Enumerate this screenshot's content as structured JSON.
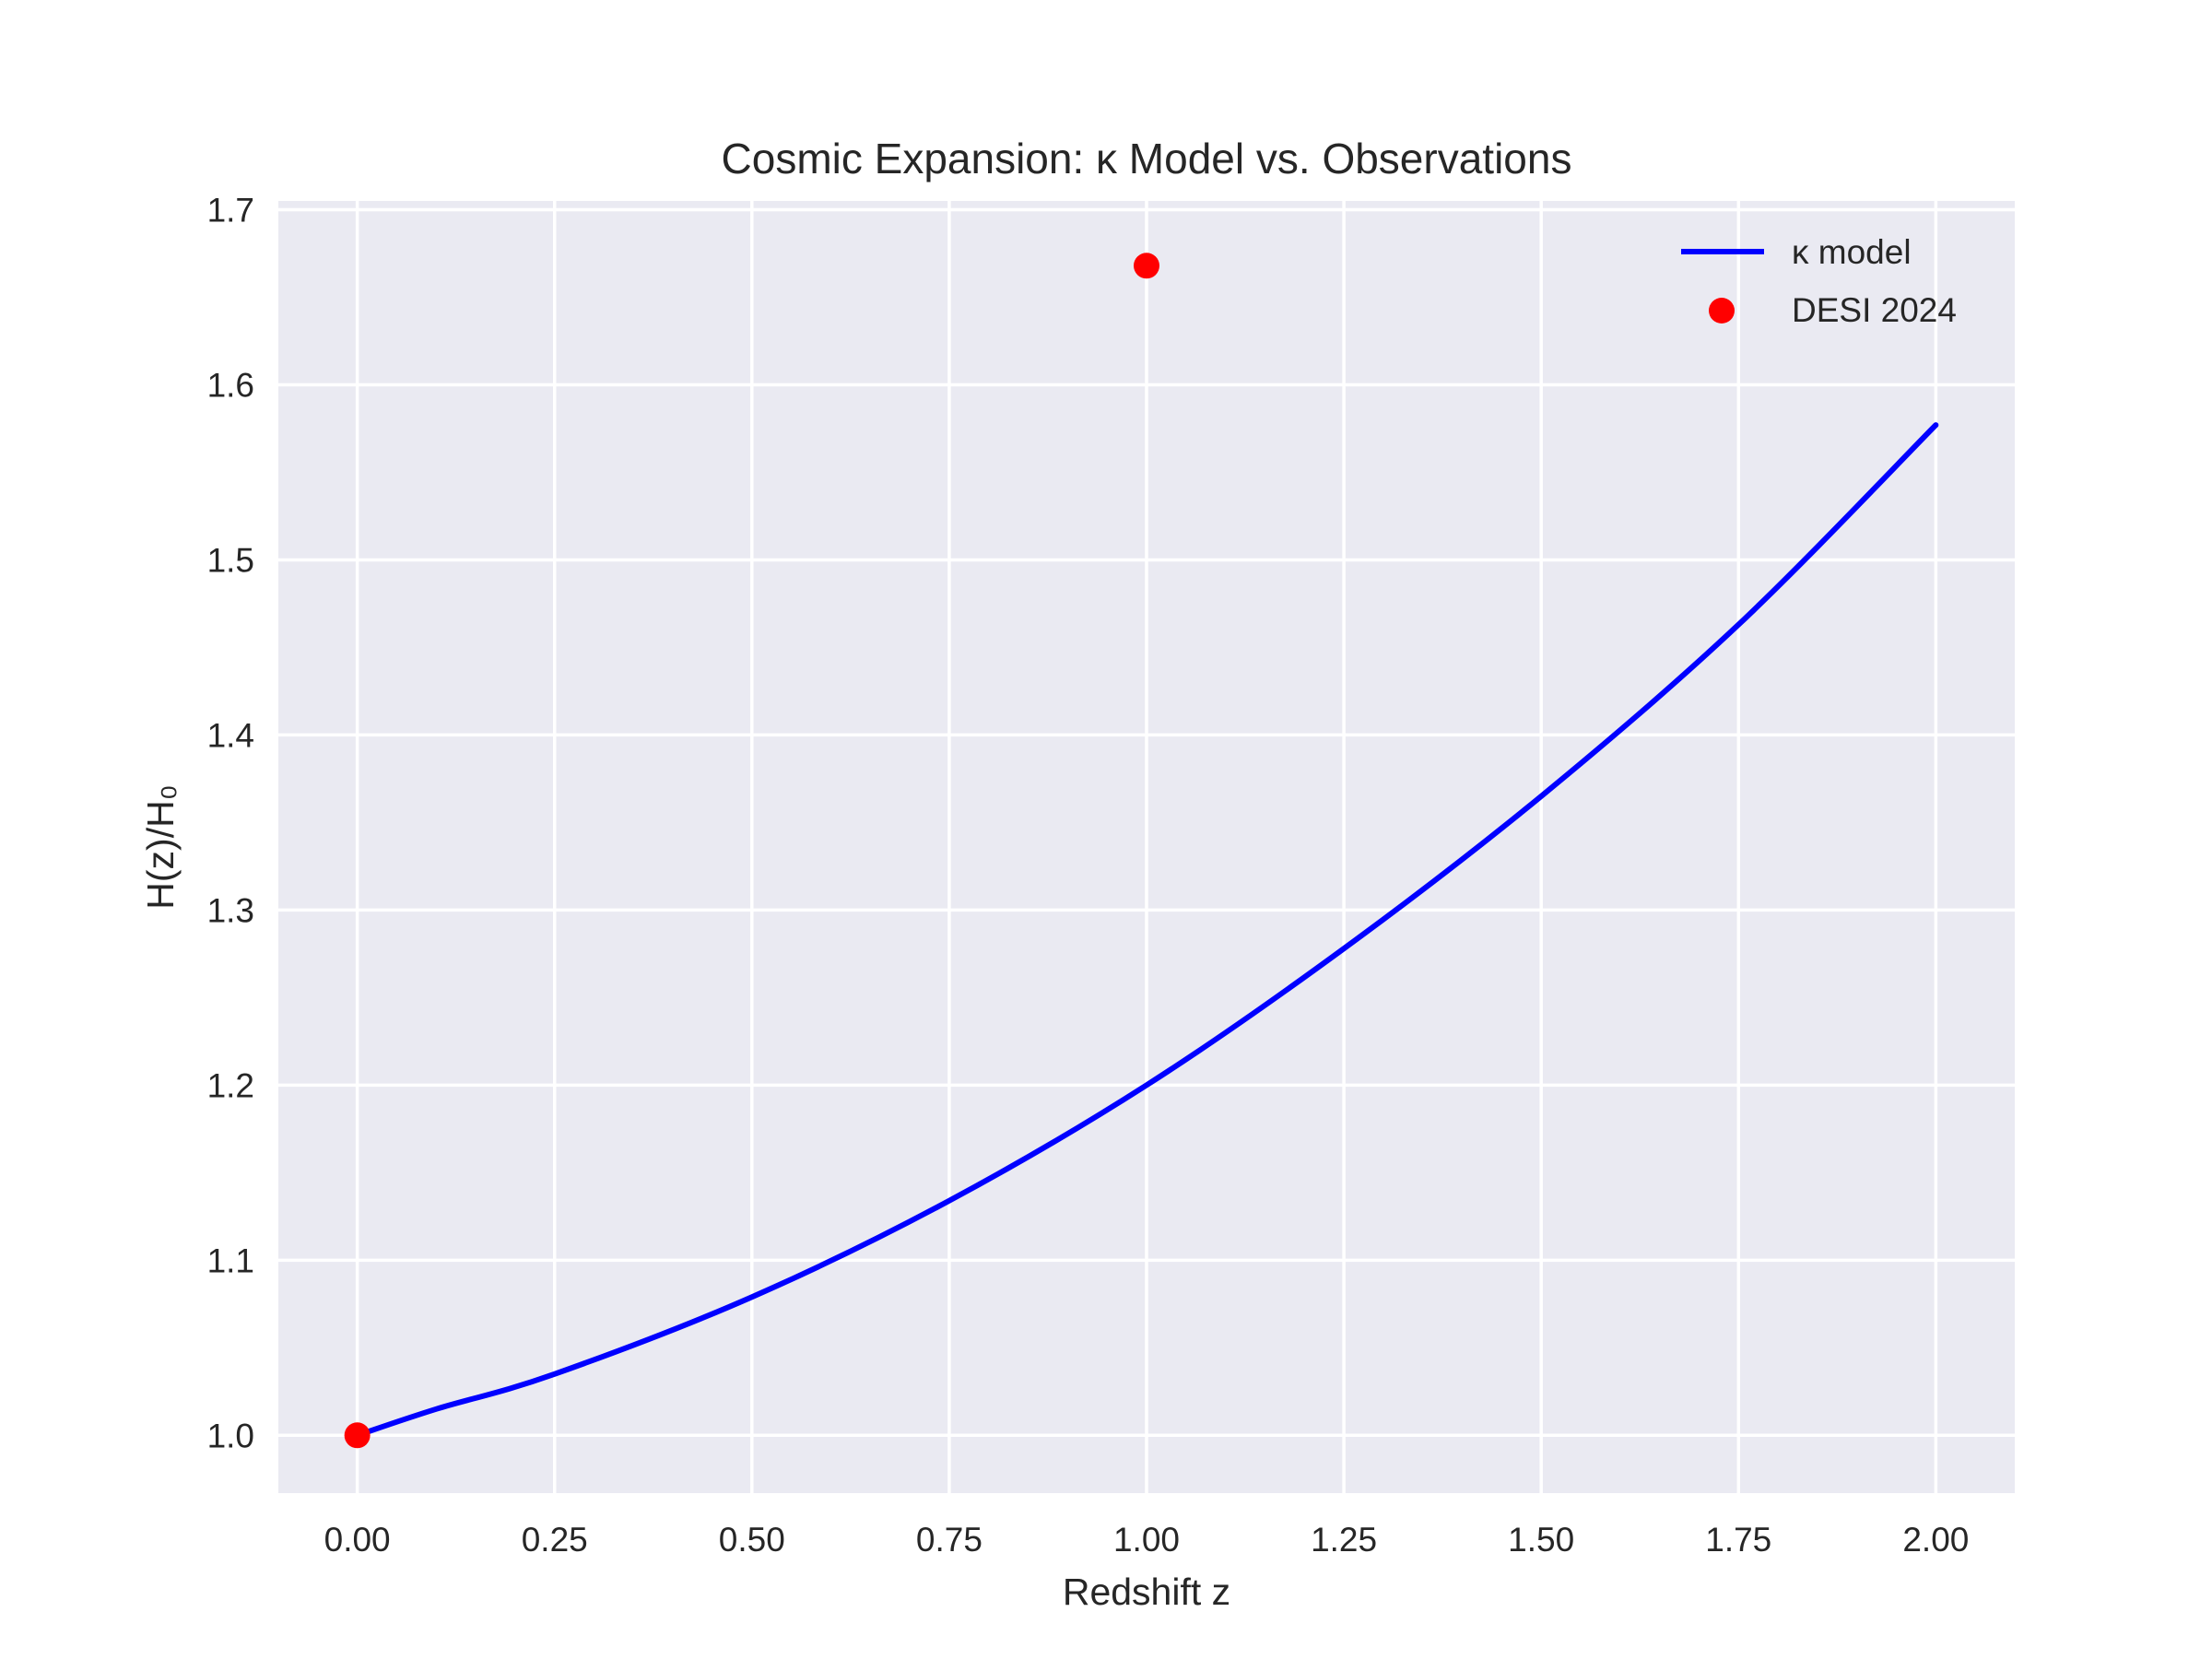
{
  "chart_data": {
    "type": "line",
    "title": "Cosmic Expansion: κ Model vs. Observations",
    "xlabel": "Redshift z",
    "ylabel": "H(z)/H₀",
    "xlim": [
      -0.1,
      2.1
    ],
    "ylim": [
      0.967,
      1.705
    ],
    "x_ticks": [
      "0.00",
      "0.25",
      "0.50",
      "0.75",
      "1.00",
      "1.25",
      "1.50",
      "1.75",
      "2.00"
    ],
    "y_ticks": [
      "1.0",
      "1.1",
      "1.2",
      "1.3",
      "1.4",
      "1.5",
      "1.6",
      "1.7"
    ],
    "grid": true,
    "legend_position": "upper right",
    "series": [
      {
        "name": "κ model",
        "kind": "line",
        "color": "#0000ff",
        "points": [
          {
            "x": 0.0,
            "y": 1.0
          },
          {
            "x": 0.1,
            "y": 1.015
          },
          {
            "x": 0.25,
            "y": 1.035
          },
          {
            "x": 0.5,
            "y": 1.079
          },
          {
            "x": 0.75,
            "y": 1.134
          },
          {
            "x": 1.0,
            "y": 1.2
          },
          {
            "x": 1.25,
            "y": 1.278
          },
          {
            "x": 1.5,
            "y": 1.365
          },
          {
            "x": 1.75,
            "y": 1.463
          },
          {
            "x": 2.0,
            "y": 1.577
          }
        ]
      },
      {
        "name": "DESI 2024",
        "kind": "scatter",
        "color": "#ff0000",
        "points": [
          {
            "x": 0.0,
            "y": 1.0
          },
          {
            "x": 1.0,
            "y": 1.668
          }
        ]
      }
    ]
  }
}
